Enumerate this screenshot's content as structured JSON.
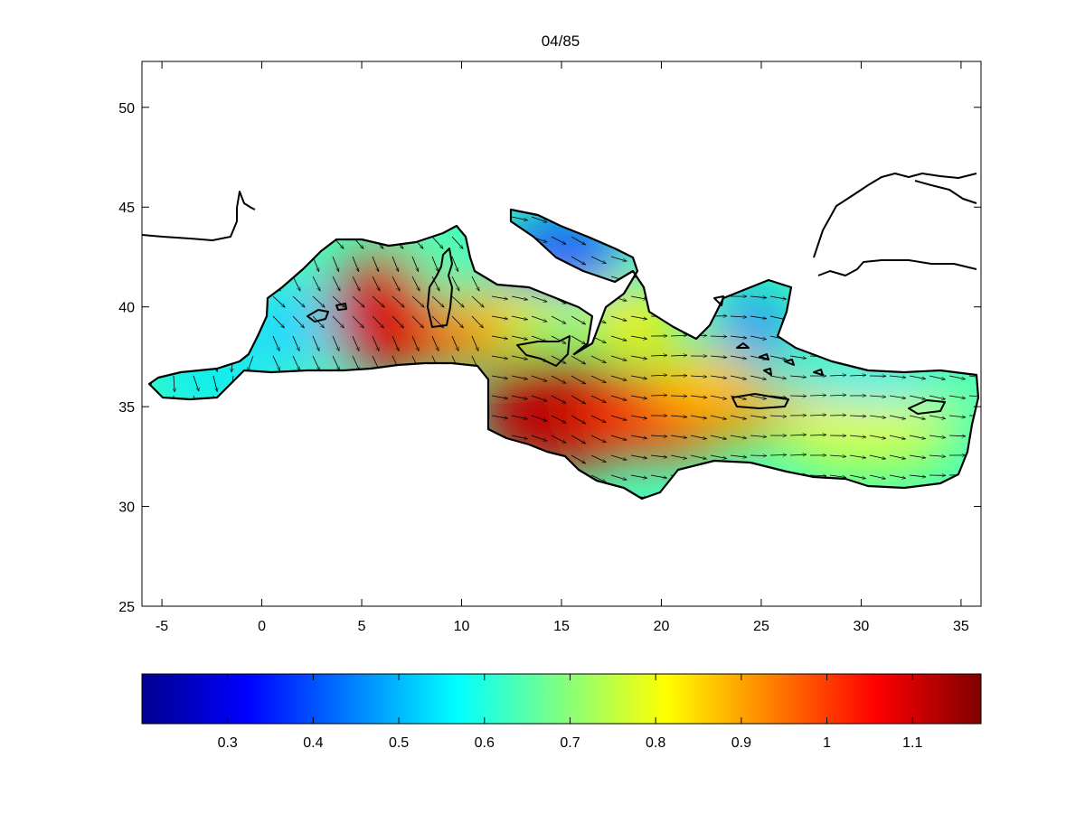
{
  "title": "04/85",
  "map": {
    "type": "heatmap",
    "region": "Mediterranean Sea",
    "field": "colored magnitude with overlaid direction arrows",
    "xlim": [
      -6,
      36
    ],
    "ylim": [
      25,
      52.3
    ],
    "x_ticks": [
      "-5",
      "0",
      "5",
      "10",
      "15",
      "20",
      "25",
      "30",
      "35"
    ],
    "x_tick_values": [
      -5,
      0,
      5,
      10,
      15,
      20,
      25,
      30,
      35
    ],
    "y_ticks": [
      "25",
      "30",
      "35",
      "40",
      "45",
      "50"
    ],
    "y_tick_values": [
      25,
      30,
      35,
      40,
      45,
      50
    ]
  },
  "colorbar": {
    "colormap": "jet",
    "range": [
      0.2,
      1.18
    ],
    "ticks": [
      "0.3",
      "0.4",
      "0.5",
      "0.6",
      "0.7",
      "0.8",
      "0.9",
      "1",
      "1.1"
    ],
    "tick_values": [
      0.3,
      0.4,
      0.5,
      0.6,
      0.7,
      0.8,
      0.9,
      1.0,
      1.1
    ]
  },
  "chart_data": {
    "type": "heatmap",
    "title": "04/85",
    "xlim": [
      -6,
      36
    ],
    "ylim": [
      25,
      52.3
    ],
    "xlabel": "",
    "ylabel": "",
    "colorbar_range": [
      0.2,
      1.18
    ],
    "approx_field_peaks": [
      {
        "lon": 6,
        "lat": 40.5,
        "value": 1.15
      },
      {
        "lon": 15,
        "lat": 33.5,
        "value": 1.15
      },
      {
        "lon": 25,
        "lat": 34,
        "value": 0.95
      },
      {
        "lon": 15,
        "lat": 44.5,
        "value": 0.35
      },
      {
        "lon": 0,
        "lat": 38,
        "value": 0.6
      }
    ],
    "arrow_direction": "predominantly south-east in western basin, east in eastern basin"
  }
}
